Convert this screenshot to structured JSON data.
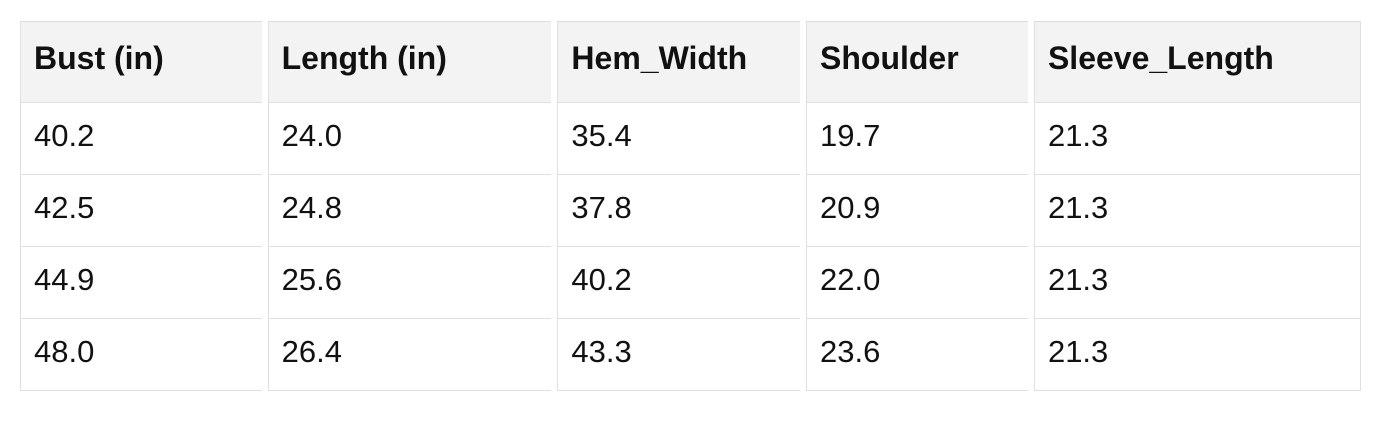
{
  "chart_data": {
    "type": "table",
    "columns": [
      "Bust (in)",
      "Length (in)",
      "Hem_Width",
      "Shoulder",
      "Sleeve_Length"
    ],
    "rows": [
      [
        "40.2",
        "24.0",
        "35.4",
        "19.7",
        "21.3"
      ],
      [
        "42.5",
        "24.8",
        "37.8",
        "20.9",
        "21.3"
      ],
      [
        "44.9",
        "25.6",
        "40.2",
        "22.0",
        "21.3"
      ],
      [
        "48.0",
        "26.4",
        "43.3",
        "23.6",
        "21.3"
      ]
    ],
    "layout_hints": {
      "header_background": "#f3f3f3",
      "border_color": "#e0e0e0",
      "header_top_border_color": "#dcdcdc",
      "text_color": "#111111",
      "page_background": "#ffffff",
      "grid": "per-cell borders with horizontal gaps between columns"
    }
  }
}
